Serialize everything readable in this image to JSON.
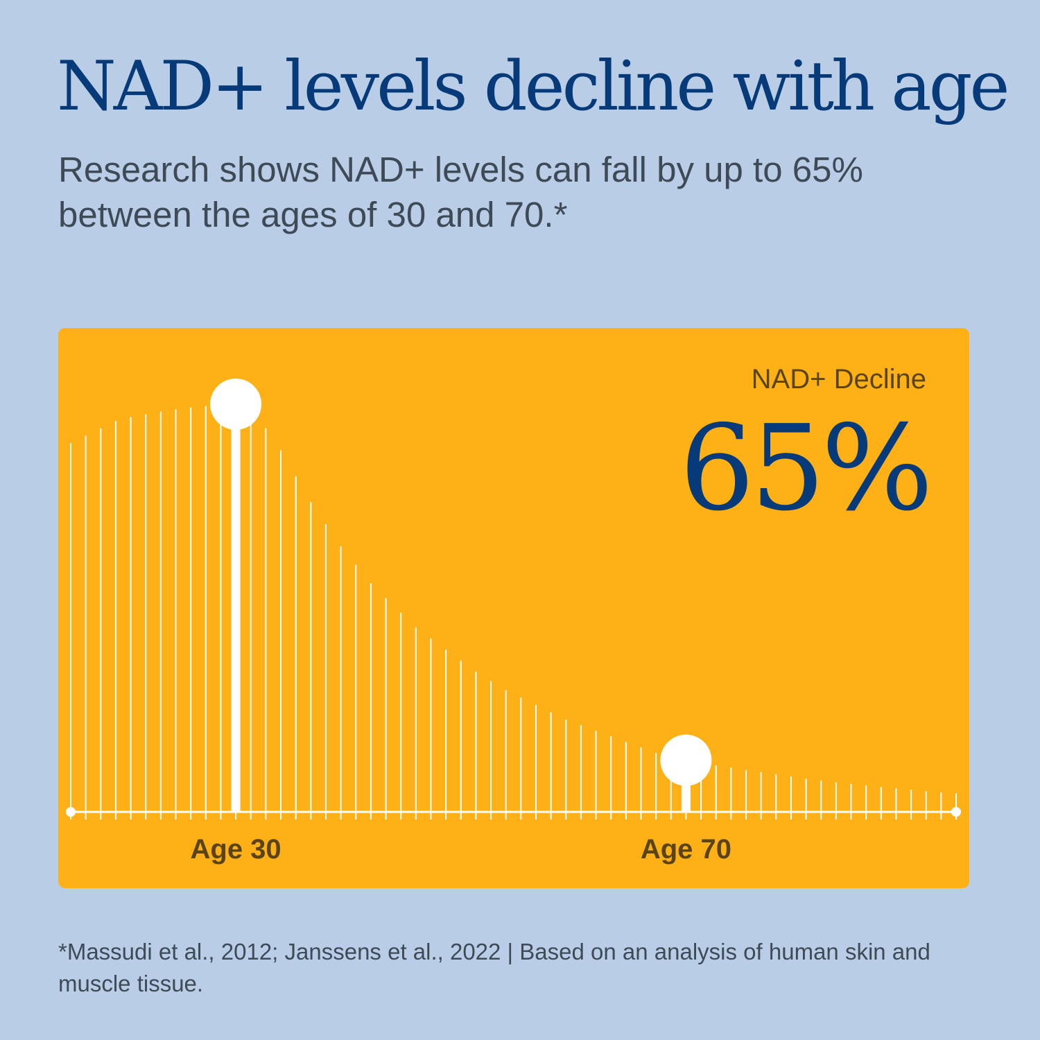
{
  "header": {
    "title": "NAD+ levels decline with age",
    "subtitle": "Research shows NAD+ levels can fall by up to 65% between the ages of 30 and 70.*"
  },
  "card": {
    "metric_label": "NAD+ Decline",
    "metric_value": "65%"
  },
  "footnote": "*Massudi et al., 2012; Janssens et al., 2022 | Based on an analysis of human skin and muscle tissue.",
  "colors": {
    "background": "#b9cde6",
    "card": "#fdb116",
    "title": "#073a78",
    "bars": "#ffffff",
    "text": "#3f4a57"
  },
  "chart_data": {
    "type": "bar",
    "title": "",
    "xlabel": "",
    "ylabel": "",
    "axis_labels": [
      "Age 30",
      "Age 70"
    ],
    "highlight_indices": [
      11,
      41
    ],
    "values": [
      100,
      102,
      104,
      106,
      107,
      107.8,
      108.5,
      109.1,
      109.6,
      110,
      110.3,
      110.5,
      108,
      104,
      98,
      91,
      84,
      78,
      72,
      67,
      62,
      58,
      54,
      50,
      47,
      44,
      41,
      38,
      35.5,
      33,
      31,
      29,
      27,
      25,
      23.5,
      22,
      20.5,
      19,
      17.5,
      16,
      15,
      14,
      13.2,
      12.6,
      12,
      11.4,
      10.8,
      10.2,
      9.6,
      9,
      8.5,
      8,
      7.6,
      7.2,
      6.8,
      6.4,
      6,
      5.6,
      5.3,
      5
    ],
    "ylim": [
      0,
      112
    ],
    "grid": false
  }
}
